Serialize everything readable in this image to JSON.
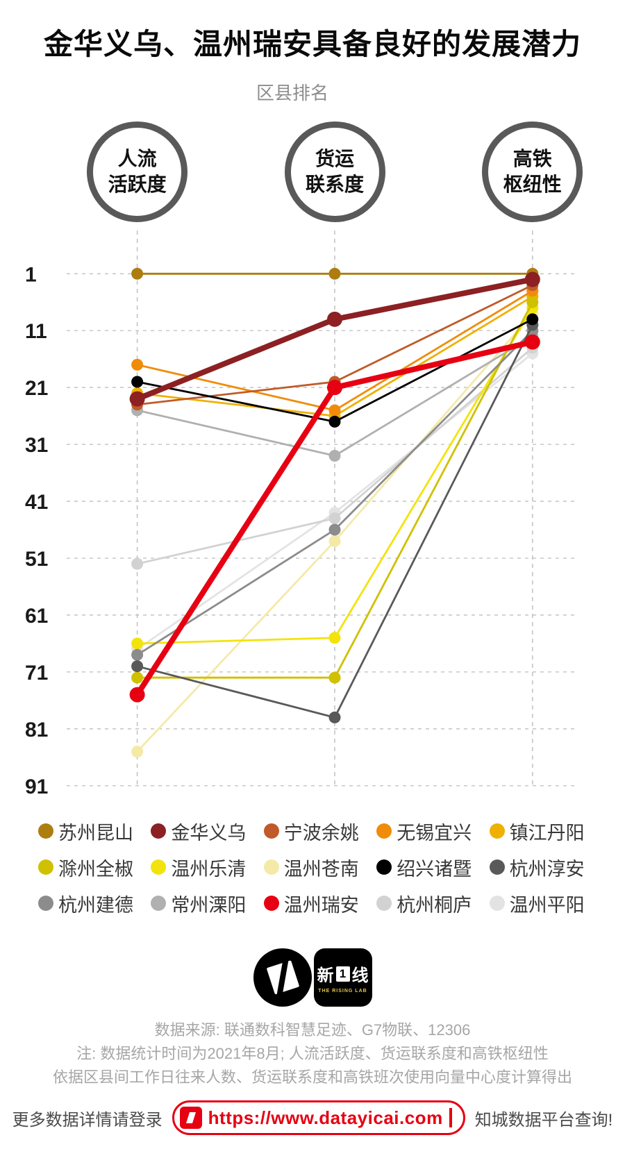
{
  "chart_data": {
    "type": "line",
    "subtype": "bump-slope-ranking",
    "title": "金华义乌、温州瑞安具备良好的发展潜力",
    "subtitle": "区县排名",
    "axes": [
      {
        "id": "people-flow",
        "label": [
          "人流",
          "活跃度"
        ]
      },
      {
        "id": "freight-link",
        "label": [
          "货运",
          "联系度"
        ]
      },
      {
        "id": "hsr-hub",
        "label": [
          "高铁",
          "枢纽性"
        ]
      }
    ],
    "y_axis": {
      "ticks": [
        1,
        11,
        21,
        31,
        41,
        51,
        61,
        71,
        81,
        91
      ],
      "range": [
        1,
        91
      ],
      "meaning": "rank, 1 = best, increases downward",
      "grid": "dashed"
    },
    "legend_position": "bottom",
    "series": [
      {
        "name": "苏州昆山",
        "color": "#ad7d10",
        "ranks": [
          1,
          1,
          1
        ],
        "emphasis": false
      },
      {
        "name": "金华义乌",
        "color": "#8c2022",
        "ranks": [
          23,
          9,
          2
        ],
        "emphasis": true
      },
      {
        "name": "宁波余姚",
        "color": "#c05a28",
        "ranks": [
          24,
          20,
          3
        ],
        "emphasis": false
      },
      {
        "name": "无锡宜兴",
        "color": "#f08c0a",
        "ranks": [
          17,
          25,
          4
        ],
        "emphasis": false
      },
      {
        "name": "镇江丹阳",
        "color": "#efb000",
        "ranks": [
          22,
          26,
          5
        ],
        "emphasis": false
      },
      {
        "name": "滁州全椒",
        "color": "#cfc000",
        "ranks": [
          72,
          72,
          6
        ],
        "emphasis": false
      },
      {
        "name": "温州乐清",
        "color": "#f2e30c",
        "ranks": [
          66,
          65,
          7
        ],
        "emphasis": false
      },
      {
        "name": "温州苍南",
        "color": "#f5e9a8",
        "ranks": [
          85,
          48,
          8
        ],
        "emphasis": false
      },
      {
        "name": "绍兴诸暨",
        "color": "#000000",
        "ranks": [
          20,
          27,
          9
        ],
        "emphasis": false
      },
      {
        "name": "杭州淳安",
        "color": "#595959",
        "ranks": [
          70,
          79,
          10
        ],
        "emphasis": false
      },
      {
        "name": "杭州建德",
        "color": "#8c8c8c",
        "ranks": [
          68,
          46,
          11
        ],
        "emphasis": false
      },
      {
        "name": "常州溧阳",
        "color": "#b0b0b0",
        "ranks": [
          25,
          33,
          12
        ],
        "emphasis": false
      },
      {
        "name": "温州瑞安",
        "color": "#e60012",
        "ranks": [
          75,
          21,
          13
        ],
        "emphasis": true
      },
      {
        "name": "杭州桐庐",
        "color": "#d2d2d2",
        "ranks": [
          52,
          44,
          14
        ],
        "emphasis": false
      },
      {
        "name": "温州平阳",
        "color": "#e3e3e3",
        "ranks": [
          67,
          43,
          15
        ],
        "emphasis": false
      }
    ]
  },
  "footer": {
    "source_line": "数据来源: 联通数科智慧足迹、G7物联、12306",
    "note_line1": "注: 数据统计时间为2021年8月; 人流活跃度、货运联系度和高铁枢纽性",
    "note_line2": "依据区县间工作日往来人数、货运联系度和高铁班次使用向量中心度计算得出",
    "cta_left": "更多数据详情请登录",
    "cta_url": "https://www.datayicai.com",
    "cta_right": "知城数据平台查询!",
    "brand_chars": [
      "新",
      "1",
      "线"
    ],
    "brand_sub": "THE RISING LAB",
    "accent_color": "#e60012"
  }
}
